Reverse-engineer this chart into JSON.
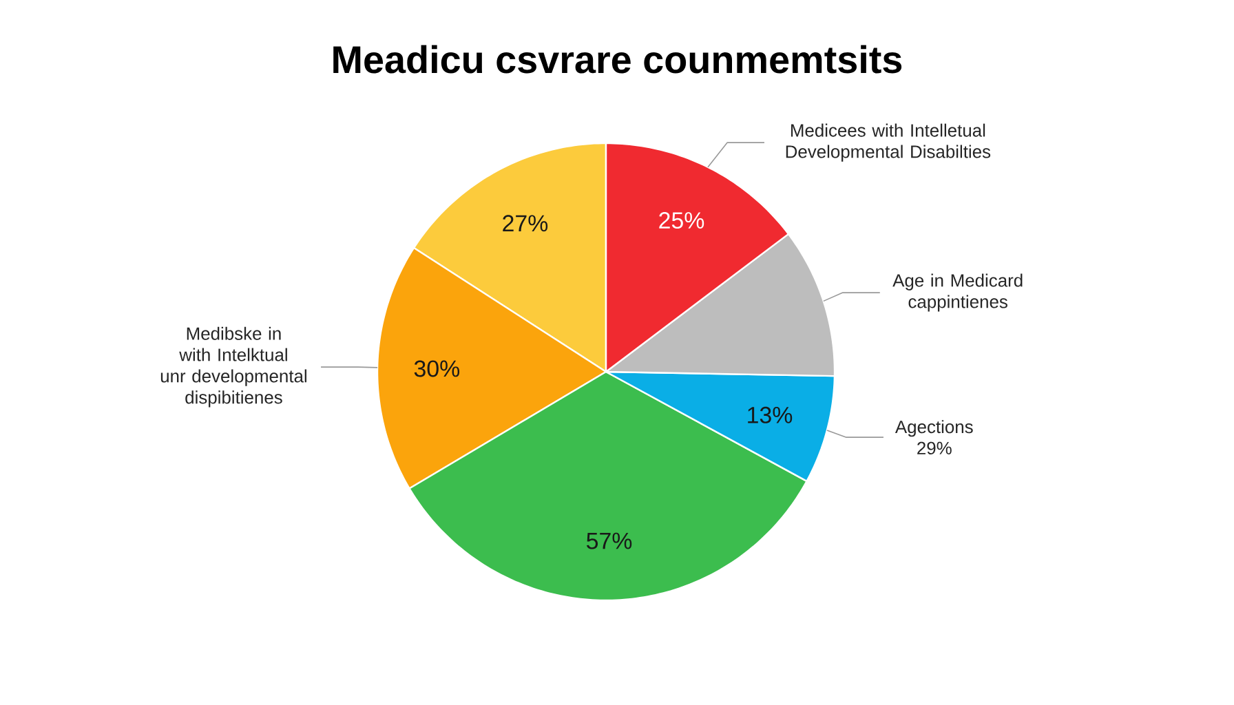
{
  "chart_data": {
    "type": "pie",
    "title": "Meadicu csvrare counmemtsits",
    "categories": [
      null,
      "Medibske in\nwith Intelktual\nunr developmental\ndispibitienes",
      null,
      "Agections\n29%",
      "Age in Medicard\ncappintienes",
      "Medicees with Intelletual\nDevelopmental Disabilties"
    ],
    "values": [
      27,
      30,
      57,
      13,
      18,
      25
    ],
    "colors": [
      "#fccb3c",
      "#fba40c",
      "#3cbd4e",
      "#0aaee6",
      "#bdbdbd",
      "#f02a30"
    ],
    "value_labels": [
      "27%",
      "30%",
      "57%",
      "13%",
      null,
      "25%"
    ]
  }
}
